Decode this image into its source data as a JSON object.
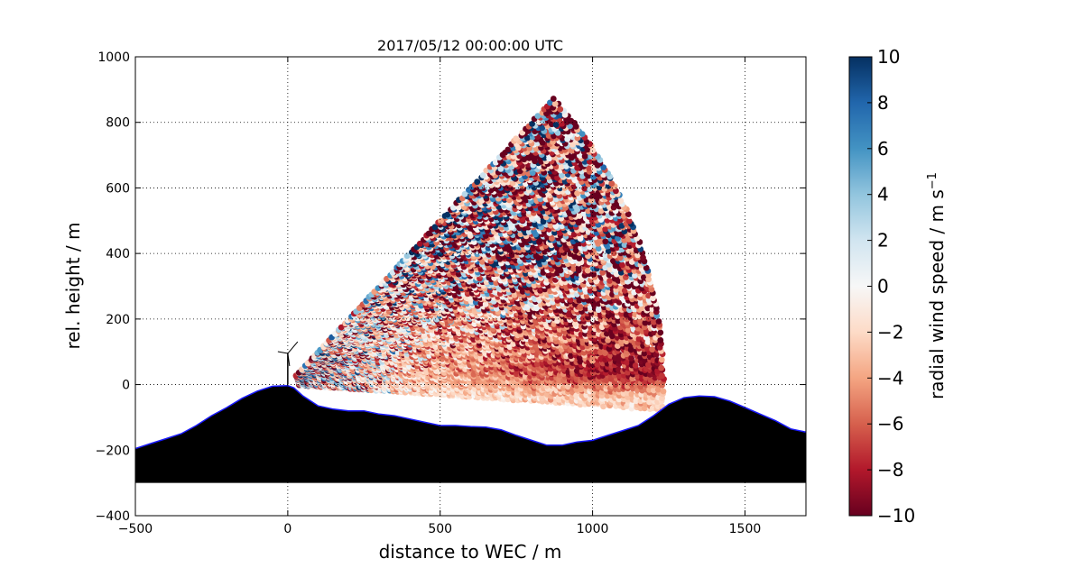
{
  "chart_data": {
    "type": "heatmap",
    "title": "2017/05/12 00:00:00 UTC",
    "xlabel": "distance to WEC / m",
    "ylabel": "rel. height / m",
    "xlim": [
      -500,
      1700
    ],
    "ylim": [
      -400,
      1000
    ],
    "x_ticks": [
      "−500",
      "0",
      "500",
      "1000",
      "1500"
    ],
    "x_tick_values": [
      -500,
      0,
      500,
      1000,
      1500
    ],
    "y_ticks": [
      "−400",
      "−200",
      "0",
      "200",
      "400",
      "600",
      "800",
      "1000"
    ],
    "y_tick_values": [
      -400,
      -200,
      0,
      200,
      400,
      600,
      800,
      1000
    ],
    "grid": true,
    "grid_style": "dotted",
    "colormap": "RdBu",
    "colorbar": {
      "label": "radial wind speed / m s",
      "label_superscript": "−1",
      "range": [
        -10,
        10
      ],
      "tick_values": [
        -10,
        -8,
        -6,
        -4,
        -2,
        0,
        2,
        4,
        6,
        8,
        10
      ],
      "ticks": [
        "−10",
        "−8",
        "−6",
        "−4",
        "−2",
        "0",
        "2",
        "4",
        "6",
        "8",
        "10"
      ],
      "colors": [
        "#67001f",
        "#b2182b",
        "#d6604d",
        "#f4a582",
        "#fddbc7",
        "#f7f7f7",
        "#d1e5f0",
        "#92c5de",
        "#4393c3",
        "#2166ac",
        "#053061"
      ]
    },
    "scan": {
      "origin": [
        0,
        0
      ],
      "max_range_m": 1240,
      "elevation_deg": [
        -3.5,
        45
      ],
      "near_field_mean_ms": 0,
      "far_field_mean_ms": -9
    },
    "terrain": {
      "x": [
        -500,
        -450,
        -400,
        -350,
        -300,
        -250,
        -200,
        -150,
        -100,
        -50,
        0,
        20,
        50,
        100,
        150,
        200,
        250,
        300,
        350,
        400,
        450,
        500,
        550,
        600,
        650,
        700,
        750,
        800,
        850,
        900,
        950,
        1000,
        1050,
        1100,
        1150,
        1200,
        1250,
        1300,
        1350,
        1400,
        1450,
        1500,
        1550,
        1600,
        1650,
        1700
      ],
      "y": [
        -195,
        -180,
        -165,
        -150,
        -125,
        -95,
        -70,
        -42,
        -20,
        -5,
        -3,
        -10,
        -35,
        -65,
        -75,
        -80,
        -80,
        -90,
        -95,
        -105,
        -115,
        -125,
        -125,
        -128,
        -130,
        -138,
        -155,
        -170,
        -185,
        -185,
        -175,
        -170,
        -155,
        -140,
        -125,
        -95,
        -60,
        -40,
        -35,
        -37,
        -50,
        -70,
        -90,
        -110,
        -135,
        -145
      ],
      "base": -300,
      "fill": "#000000",
      "outline": "#1a1aff"
    },
    "turbine": {
      "x": 0,
      "hub_height_m": 95
    },
    "series": []
  }
}
